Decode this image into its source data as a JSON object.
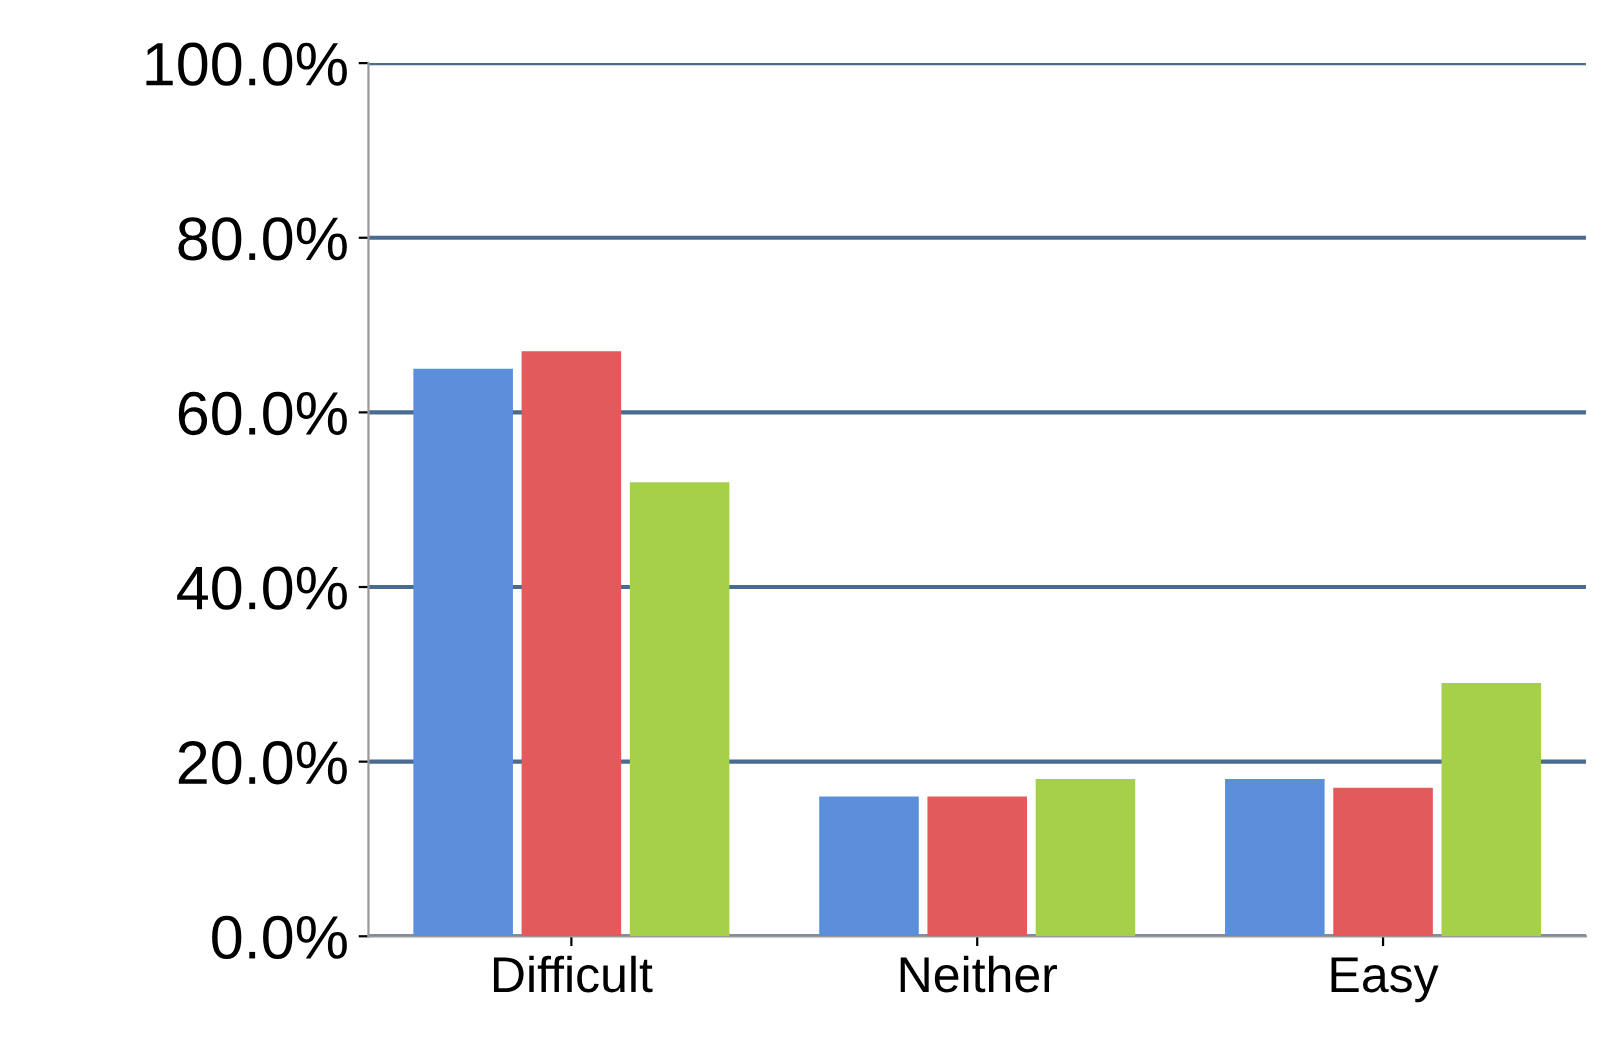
{
  "chart_data": {
    "type": "bar",
    "categories": [
      "Difficult",
      "Neither",
      "Easy"
    ],
    "series": [
      {
        "color": "#5b8fdc",
        "values": [
          65,
          16,
          18
        ]
      },
      {
        "color": "#e25a5a",
        "values": [
          67,
          16,
          17
        ]
      },
      {
        "color": "#a6cf4a",
        "values": [
          52,
          18,
          29
        ]
      }
    ],
    "ylim": [
      0,
      100
    ],
    "yticks": [
      {
        "value": 0,
        "label": "0.0%"
      },
      {
        "value": 20,
        "label": "20.0%"
      },
      {
        "value": 40,
        "label": "40.0%"
      },
      {
        "value": 60,
        "label": "60.0%"
      },
      {
        "value": 80,
        "label": "80.0%"
      },
      {
        "value": 100,
        "label": "100.0%"
      }
    ],
    "grid": "y",
    "legend": false
  }
}
